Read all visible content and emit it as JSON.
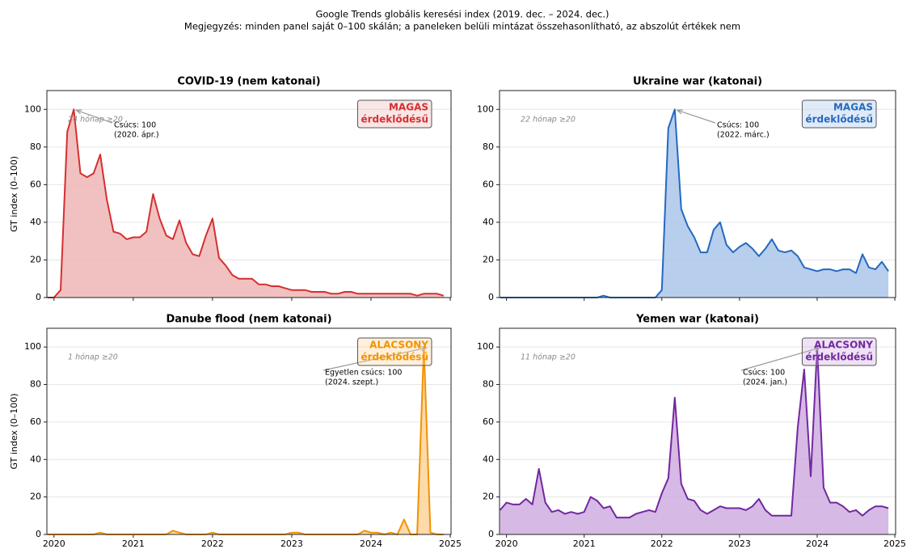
{
  "chart_data": {
    "type": "line",
    "title": "Google Trends globális keresési index (2019. dec. – 2024. dec.)",
    "subtitle": "Megjegyzés: minden panel saját 0–100 skálán; a paneleken belüli mintázat összehasonlítható, az abszolút értékek nem",
    "ylabel": "GT index (0–100)",
    "xlim": [
      2019.91,
      2025.01
    ],
    "xticks": [
      2020,
      2021,
      2022,
      2023,
      2024,
      2025
    ],
    "ylim": [
      0,
      110
    ],
    "yticks": [
      0,
      20,
      40,
      60,
      80,
      100
    ],
    "grid": true,
    "x": [
      2019.917,
      2020,
      2020.083,
      2020.167,
      2020.25,
      2020.333,
      2020.417,
      2020.5,
      2020.583,
      2020.667,
      2020.75,
      2020.833,
      2020.917,
      2021,
      2021.083,
      2021.167,
      2021.25,
      2021.333,
      2021.417,
      2021.5,
      2021.583,
      2021.667,
      2021.75,
      2021.833,
      2021.917,
      2022,
      2022.083,
      2022.167,
      2022.25,
      2022.333,
      2022.417,
      2022.5,
      2022.583,
      2022.667,
      2022.75,
      2022.833,
      2022.917,
      2023,
      2023.083,
      2023.167,
      2023.25,
      2023.333,
      2023.417,
      2023.5,
      2023.583,
      2023.667,
      2023.75,
      2023.833,
      2023.917,
      2024,
      2024.083,
      2024.167,
      2024.25,
      2024.333,
      2024.417,
      2024.5,
      2024.583,
      2024.667,
      2024.75,
      2024.833,
      2024.917
    ],
    "panels": [
      {
        "title": "COVID-19 (nem katonai)",
        "color": "#d62f2f",
        "fill": "#efb6b6",
        "badge": [
          "MAGAS",
          "érdeklődésű"
        ],
        "note": "24 hónap ≥20",
        "annotation": [
          "Csúcs: 100",
          "(2020. ápr.)"
        ],
        "values": [
          0,
          0,
          4,
          88,
          100,
          66,
          64,
          66,
          76,
          52,
          35,
          34,
          31,
          32,
          32,
          35,
          55,
          42,
          33,
          31,
          41,
          29,
          23,
          22,
          33,
          42,
          21,
          17,
          12,
          10,
          10,
          10,
          7,
          7,
          6,
          6,
          5,
          4,
          4,
          4,
          3,
          3,
          3,
          2,
          2,
          3,
          3,
          2,
          2,
          2,
          2,
          2,
          2,
          2,
          2,
          2,
          1,
          2,
          2,
          2,
          1
        ]
      },
      {
        "title": "Ukraine war (katonai)",
        "color": "#2469bf",
        "fill": "#aac6ea",
        "badge": [
          "MAGAS",
          "érdeklődésű"
        ],
        "note": "22 hónap ≥20",
        "annotation": [
          "Csúcs: 100",
          "(2022. márc.)"
        ],
        "values": [
          0,
          0,
          0,
          0,
          0,
          0,
          0,
          0,
          0,
          0,
          0,
          0,
          0,
          0,
          0,
          0,
          1,
          0,
          0,
          0,
          0,
          0,
          0,
          0,
          0,
          4,
          90,
          100,
          47,
          38,
          32,
          24,
          24,
          36,
          40,
          28,
          24,
          27,
          29,
          26,
          22,
          26,
          31,
          25,
          24,
          25,
          22,
          16,
          15,
          14,
          15,
          15,
          14,
          15,
          15,
          13,
          23,
          16,
          15,
          19,
          14
        ]
      },
      {
        "title": "Danube flood (nem katonai)",
        "color": "#f39200",
        "fill": "#fcd49a",
        "badge": [
          "ALACSONY",
          "érdeklődésű"
        ],
        "note": "1 hónap ≥20",
        "annotation": [
          "Egyetlen csúcs: 100",
          "(2024. szept.)"
        ],
        "values": [
          0,
          0,
          0,
          0,
          0,
          0,
          0,
          0,
          1,
          0,
          0,
          0,
          0,
          0,
          0,
          0,
          0,
          0,
          0,
          2,
          1,
          0,
          0,
          0,
          0,
          1,
          0,
          0,
          0,
          0,
          0,
          0,
          0,
          0,
          0,
          0,
          0,
          1,
          1,
          0,
          0,
          0,
          0,
          0,
          0,
          0,
          0,
          0,
          2,
          1,
          1,
          0,
          1,
          0,
          8,
          0,
          0,
          100,
          1,
          0,
          0
        ]
      },
      {
        "title": "Yemen war (katonai)",
        "color": "#7228a0",
        "fill": "#cfaddf",
        "badge": [
          "ALACSONY",
          "érdeklődésű"
        ],
        "note": "11 hónap ≥20",
        "annotation": [
          "Csúcs: 100",
          "(2024. jan.)"
        ],
        "values": [
          13,
          17,
          16,
          16,
          19,
          16,
          35,
          17,
          12,
          13,
          11,
          12,
          11,
          12,
          20,
          18,
          14,
          15,
          9,
          9,
          9,
          11,
          12,
          13,
          12,
          22,
          30,
          73,
          27,
          19,
          18,
          13,
          11,
          13,
          15,
          14,
          14,
          14,
          13,
          15,
          19,
          13,
          10,
          10,
          10,
          10,
          57,
          88,
          31,
          100,
          25,
          17,
          17,
          15,
          12,
          13,
          10,
          13,
          15,
          15,
          14
        ]
      }
    ]
  }
}
